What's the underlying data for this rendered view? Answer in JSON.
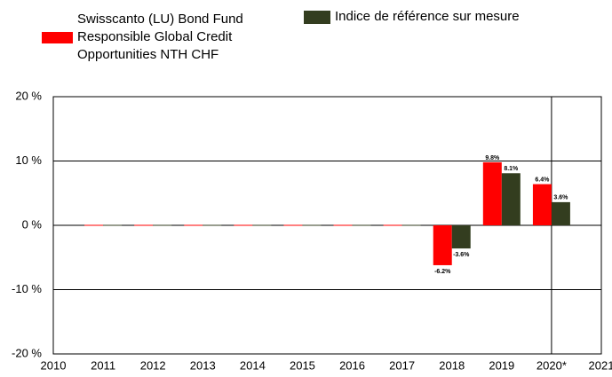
{
  "chart_data": {
    "type": "bar",
    "categories": [
      "2010",
      "2011",
      "2012",
      "2013",
      "2014",
      "2015",
      "2016",
      "2017",
      "2018",
      "2019",
      "2020*",
      "2021"
    ],
    "series": [
      {
        "name": "Swisscanto (LU) Bond Fund Responsible Global Credit Opportunities NTH CHF",
        "color": "#ff0000",
        "values": [
          null,
          0,
          0,
          0,
          0,
          0,
          0,
          0,
          -6.2,
          9.8,
          6.4,
          null
        ],
        "value_labels": [
          null,
          null,
          null,
          null,
          null,
          null,
          null,
          null,
          "-6.2%",
          "9.8%",
          "6.4%",
          null
        ]
      },
      {
        "name": "Indice de référence sur mesure",
        "color": "#333d1f",
        "values": [
          null,
          0,
          0,
          0,
          0,
          0,
          0,
          0,
          -3.6,
          8.1,
          3.6,
          null
        ],
        "value_labels": [
          null,
          null,
          null,
          null,
          null,
          null,
          null,
          null,
          "-3.6%",
          "8.1%",
          "3.6%",
          null
        ]
      }
    ],
    "ylim": [
      -20,
      20
    ],
    "yticks": [
      {
        "value": -20,
        "label": "-20 %"
      },
      {
        "value": -10,
        "label": "-10 %"
      },
      {
        "value": 0,
        "label": "0 %"
      },
      {
        "value": 10,
        "label": "10 %"
      },
      {
        "value": 20,
        "label": "20 %"
      }
    ],
    "grid": true
  }
}
